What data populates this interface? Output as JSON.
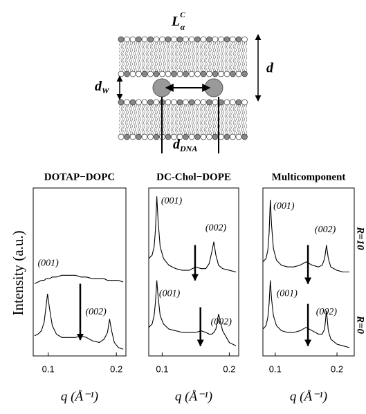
{
  "diagram": {
    "title": {
      "base": "L",
      "sub": "α",
      "sup": "C"
    },
    "d": "d",
    "d_w": {
      "base": "d",
      "sub": "W"
    },
    "d_dna": {
      "base": "d",
      "sub": "DNA"
    }
  },
  "y_label": "Intensity (a.u.)",
  "row_labels": [
    "R=10",
    "R=0"
  ],
  "chart_data": [
    {
      "type": "line",
      "title": "DOTAP−DOPC",
      "x_label": "q (Å⁻¹)",
      "x": [
        0.08,
        0.085,
        0.09,
        0.094,
        0.097,
        0.099,
        0.102,
        0.106,
        0.112,
        0.12,
        0.13,
        0.14,
        0.148,
        0.156,
        0.165,
        0.175,
        0.182,
        0.187,
        0.19,
        0.193,
        0.197,
        0.203,
        0.21
      ],
      "series": [
        {
          "color": "#000000",
          "values": [
            43,
            44,
            45,
            45,
            46,
            46,
            46,
            47,
            47,
            48,
            48,
            48,
            47,
            47,
            46,
            46,
            46,
            45,
            45,
            45,
            45,
            45,
            44
          ]
        },
        {
          "color": "#000000",
          "values": [
            12,
            13,
            15,
            20,
            30,
            37,
            28,
            18,
            13,
            11,
            11,
            11,
            12,
            11,
            9,
            8,
            10,
            14,
            22,
            15,
            8,
            5,
            4
          ]
        }
      ],
      "xlim": [
        0.078,
        0.214
      ],
      "ylim": [
        0,
        100
      ],
      "xticks": [
        0.1,
        0.2
      ],
      "annotations": [
        {
          "text": "(001)",
          "x": 0.1,
          "y": 55
        },
        {
          "text": "(002)",
          "x": 0.17,
          "y": 26
        }
      ],
      "arrows": [
        {
          "x": 0.147,
          "y": [
            43,
            9.5
          ]
        }
      ]
    },
    {
      "type": "line",
      "title": "DC-Chol−DOPE",
      "x_label": "q (Å⁻¹)",
      "x": [
        0.08,
        0.085,
        0.088,
        0.09,
        0.092,
        0.094,
        0.097,
        0.102,
        0.11,
        0.12,
        0.13,
        0.14,
        0.15,
        0.158,
        0.165,
        0.17,
        0.174,
        0.177,
        0.18,
        0.184,
        0.19,
        0.2,
        0.21
      ],
      "series": [
        {
          "color": "#000000",
          "values": [
            58,
            60,
            65,
            75,
            95,
            80,
            65,
            58,
            54,
            52,
            51,
            51,
            53,
            52,
            52,
            55,
            62,
            68,
            60,
            54,
            52,
            51,
            50
          ]
        },
        {
          "color": "#000000",
          "values": [
            17,
            19,
            24,
            32,
            45,
            35,
            24,
            19,
            16,
            15,
            14,
            14,
            14,
            15,
            14,
            13,
            13,
            14,
            16,
            25,
            15,
            8,
            6
          ]
        }
      ],
      "xlim": [
        0.08,
        0.214
      ],
      "ylim": [
        0,
        100
      ],
      "xticks": [
        0.1,
        0.2
      ],
      "annotations": [
        {
          "text": "(001)",
          "x": 0.114,
          "y": 92
        },
        {
          "text": "(002)",
          "x": 0.18,
          "y": 76
        },
        {
          "text": "(001)",
          "x": 0.111,
          "y": 37
        },
        {
          "text": "(002)",
          "x": 0.188,
          "y": 20
        }
      ],
      "arrows": [
        {
          "x": 0.149,
          "y": [
            66,
            45
          ]
        },
        {
          "x": 0.157,
          "y": [
            29,
            6
          ]
        }
      ]
    },
    {
      "type": "line",
      "title": "Multicomponent",
      "x_label": "q (Å⁻¹)",
      "x": [
        0.08,
        0.085,
        0.088,
        0.09,
        0.092,
        0.094,
        0.097,
        0.102,
        0.11,
        0.12,
        0.13,
        0.14,
        0.15,
        0.16,
        0.17,
        0.176,
        0.18,
        0.183,
        0.186,
        0.19,
        0.2,
        0.21,
        0.22
      ],
      "series": [
        {
          "color": "#000000",
          "values": [
            56,
            58,
            63,
            73,
            93,
            78,
            64,
            57,
            54,
            53,
            53,
            54,
            56,
            54,
            53,
            54,
            58,
            66,
            58,
            53,
            51,
            50,
            50
          ]
        },
        {
          "color": "#000000",
          "values": [
            16,
            18,
            23,
            31,
            45,
            34,
            24,
            18,
            15,
            14,
            14,
            15,
            17,
            15,
            13,
            13,
            16,
            27,
            15,
            10,
            7,
            6,
            5
          ]
        }
      ],
      "xlim": [
        0.08,
        0.228
      ],
      "ylim": [
        0,
        100
      ],
      "xticks": [
        0.1,
        0.2
      ],
      "annotations": [
        {
          "text": "(001)",
          "x": 0.114,
          "y": 89
        },
        {
          "text": "(002)",
          "x": 0.181,
          "y": 75
        },
        {
          "text": "(001)",
          "x": 0.119,
          "y": 37
        },
        {
          "text": "(002)",
          "x": 0.183,
          "y": 26
        }
      ],
      "arrows": [
        {
          "x": 0.153,
          "y": [
            66,
            43
          ]
        },
        {
          "x": 0.153,
          "y": [
            31,
            6
          ]
        }
      ]
    }
  ]
}
